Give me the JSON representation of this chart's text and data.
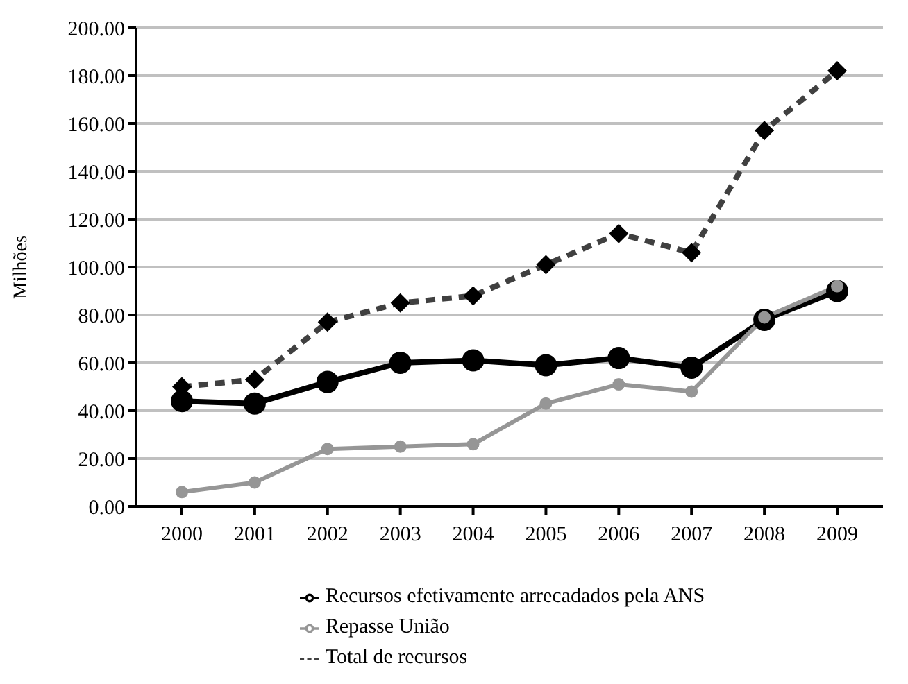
{
  "chart_data": {
    "type": "line",
    "ylabel": "Milhões",
    "categories": [
      "2000",
      "2001",
      "2002",
      "2003",
      "2004",
      "2005",
      "2006",
      "2007",
      "2008",
      "2009"
    ],
    "series": [
      {
        "name": "Recursos efetivamente arrecadados pela ANS",
        "color": "#000000",
        "marker": "circle",
        "line_style": "solid",
        "values": [
          44,
          43,
          52,
          60,
          61,
          59,
          62,
          58,
          78,
          90
        ]
      },
      {
        "name": "Repasse União",
        "color": "#969696",
        "marker": "circle",
        "line_style": "solid",
        "values": [
          6,
          10,
          24,
          25,
          26,
          43,
          51,
          48,
          79,
          92
        ]
      },
      {
        "name": "Total de recursos",
        "color": "#404040",
        "marker": "diamond",
        "line_style": "dashed",
        "values": [
          50,
          53,
          77,
          85,
          88,
          101,
          114,
          106,
          157,
          182
        ]
      }
    ],
    "ylim": [
      0,
      200
    ],
    "yticks": [
      {
        "value": 0,
        "label": "0.00"
      },
      {
        "value": 20,
        "label": "20.00"
      },
      {
        "value": 40,
        "label": "40.00"
      },
      {
        "value": 60,
        "label": "60.00"
      },
      {
        "value": 80,
        "label": "80.00"
      },
      {
        "value": 100,
        "label": "100.00"
      },
      {
        "value": 120,
        "label": "120.00"
      },
      {
        "value": 140,
        "label": "140.00"
      },
      {
        "value": 160,
        "label": "160.00"
      },
      {
        "value": 180,
        "label": "180.00"
      },
      {
        "value": 200,
        "label": "200.00"
      }
    ],
    "grid": "y",
    "legend": "bottom"
  }
}
